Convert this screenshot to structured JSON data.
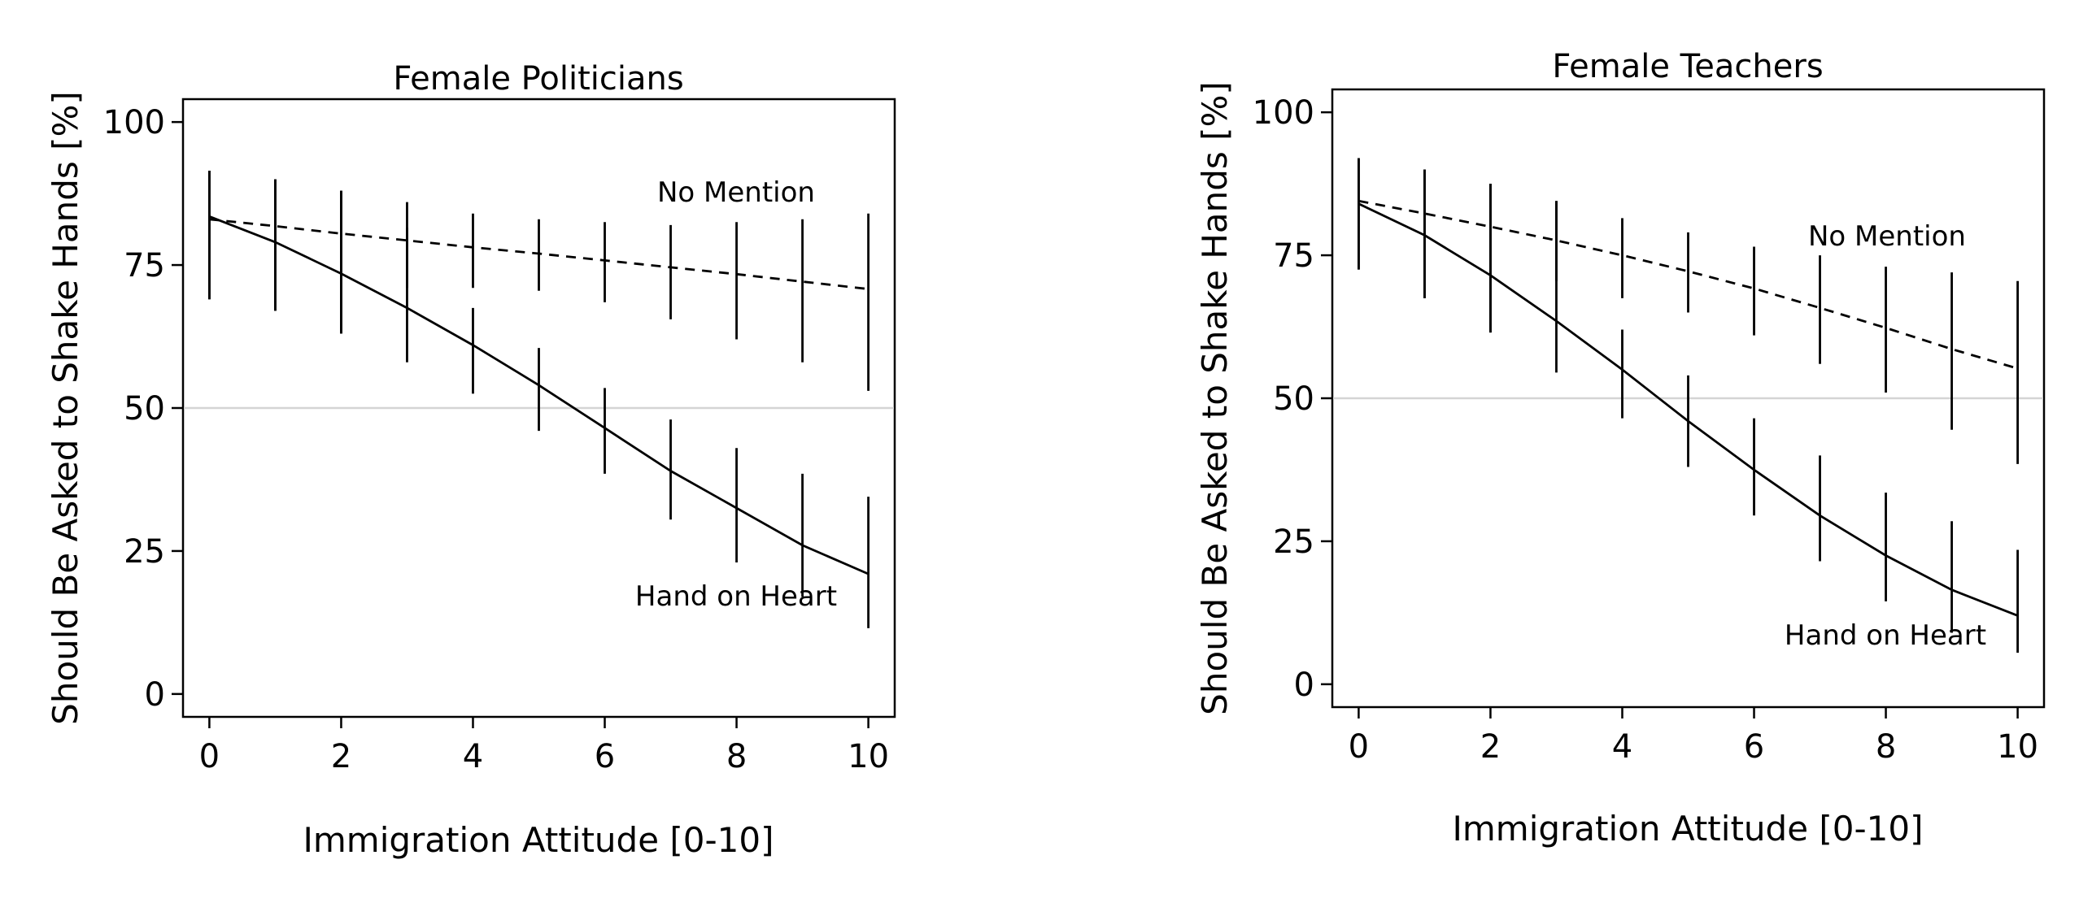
{
  "chart_data": [
    {
      "type": "line",
      "title": "Female Politicians",
      "xlabel": "Immigration Attitude [0-10]",
      "ylabel": "Should Be Asked to Shake Hands [%]",
      "xlim": [
        -0.4,
        10.4
      ],
      "ylim": [
        -4,
        104
      ],
      "xticks": [
        0,
        2,
        4,
        6,
        8,
        10
      ],
      "yticks": [
        0,
        25,
        50,
        75,
        100
      ],
      "reference_line_y": 50,
      "grid": false,
      "legend": "none (series labelled directly on plot)",
      "x": [
        0,
        1,
        2,
        3,
        4,
        5,
        6,
        7,
        8,
        9,
        10
      ],
      "series": [
        {
          "name": "No Mention",
          "line_style": "dashed",
          "values": [
            83,
            81.8,
            80.5,
            79.3,
            78.1,
            77.0,
            75.8,
            74.6,
            73.4,
            72.1,
            70.8
          ],
          "ci_low": [
            69,
            67,
            63,
            71,
            71,
            70.5,
            68.5,
            65.5,
            62,
            58,
            53
          ],
          "ci_high": [
            91.5,
            90,
            88,
            86,
            84,
            83,
            82.5,
            82,
            82.5,
            83,
            84
          ]
        },
        {
          "name": "Hand on Heart",
          "line_style": "solid",
          "values": [
            83.5,
            79,
            73.5,
            67.5,
            61,
            54,
            46.5,
            39,
            32.5,
            26,
            21
          ],
          "ci_low": [
            69,
            67,
            63,
            58,
            52.5,
            46,
            38.5,
            30.5,
            23,
            17,
            11.5
          ],
          "ci_high": [
            91.5,
            90,
            88,
            81.5,
            67.5,
            60.5,
            53.5,
            48,
            43,
            38.5,
            34.5
          ]
        }
      ]
    },
    {
      "type": "line",
      "title": "Female Teachers",
      "xlabel": "Immigration Attitude [0-10]",
      "ylabel": "Should Be Asked to Shake Hands [%]",
      "xlim": [
        -0.4,
        10.4
      ],
      "ylim": [
        -4,
        104
      ],
      "xticks": [
        0,
        2,
        4,
        6,
        8,
        10
      ],
      "yticks": [
        0,
        25,
        50,
        75,
        100
      ],
      "reference_line_y": 50,
      "grid": false,
      "legend": "none (series labelled directly on plot)",
      "x": [
        0,
        1,
        2,
        3,
        4,
        5,
        6,
        7,
        8,
        9,
        10
      ],
      "series": [
        {
          "name": "No Mention",
          "line_style": "dashed",
          "values": [
            84.5,
            82.3,
            80.0,
            77.6,
            75.0,
            72.2,
            69.2,
            65.8,
            62.3,
            58.6,
            55.2
          ],
          "ci_low": [
            72.5,
            67.5,
            61.5,
            70.5,
            67.5,
            65,
            61,
            56,
            51,
            44.5,
            38.5
          ],
          "ci_high": [
            92,
            90,
            87.5,
            84.5,
            81.5,
            79,
            76.5,
            75,
            73,
            72,
            70.5
          ]
        },
        {
          "name": "Hand on Heart",
          "line_style": "solid",
          "values": [
            84,
            78.5,
            71.5,
            63.5,
            55,
            46,
            37.5,
            29.5,
            22.5,
            16.5,
            12
          ],
          "ci_low": [
            72.5,
            67.5,
            61.5,
            54.5,
            46.5,
            38,
            29.5,
            21.5,
            14.5,
            9,
            5.5
          ],
          "ci_high": [
            92,
            90,
            87.5,
            84.5,
            62,
            54,
            46.5,
            40,
            33.5,
            28.5,
            23.5
          ]
        }
      ]
    }
  ]
}
